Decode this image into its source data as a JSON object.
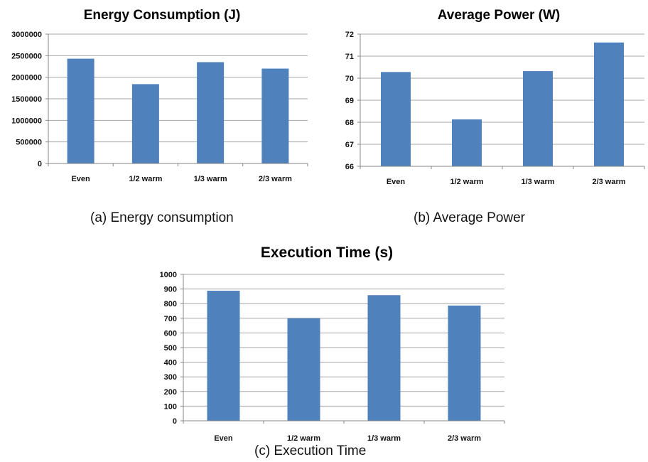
{
  "colors": {
    "bar": "#4f81bd",
    "grid": "#a6a6a6",
    "axis": "#868686"
  },
  "chart_data": [
    {
      "id": "energy",
      "type": "bar",
      "title": "Energy Consumption (J)",
      "categories": [
        "Even",
        "1/2 warm",
        "1/3 warm",
        "2/3 warm"
      ],
      "values": [
        2430000,
        1840000,
        2350000,
        2200000
      ],
      "ylim": [
        0,
        3000000
      ],
      "yticks": [
        0,
        500000,
        1000000,
        1500000,
        2000000,
        2500000,
        3000000
      ],
      "ytick_labels": [
        "0",
        "500000",
        "1000000",
        "1500000",
        "2000000",
        "2500000",
        "3000000"
      ],
      "grid": true,
      "xlabel": "",
      "ylabel": ""
    },
    {
      "id": "power",
      "type": "bar",
      "title": "Average Power (W)",
      "categories": [
        "Even",
        "1/2 warm",
        "1/3 warm",
        "2/3 warm"
      ],
      "values": [
        70.28,
        68.13,
        70.32,
        71.62
      ],
      "ylim": [
        66,
        72
      ],
      "yticks": [
        66,
        67,
        68,
        69,
        70,
        71,
        72
      ],
      "ytick_labels": [
        "66",
        "67",
        "68",
        "69",
        "70",
        "71",
        "72"
      ],
      "grid": true,
      "xlabel": "",
      "ylabel": ""
    },
    {
      "id": "time",
      "type": "bar",
      "title": "Execution Time (s)",
      "categories": [
        "Even",
        "1/2 warm",
        "1/3 warm",
        "2/3 warm"
      ],
      "values": [
        888,
        700,
        858,
        787
      ],
      "ylim": [
        0,
        1000
      ],
      "yticks": [
        0,
        100,
        200,
        300,
        400,
        500,
        600,
        700,
        800,
        900,
        1000
      ],
      "ytick_labels": [
        "0",
        "100",
        "200",
        "300",
        "400",
        "500",
        "600",
        "700",
        "800",
        "900",
        "1000"
      ],
      "grid": true,
      "xlabel": "",
      "ylabel": ""
    }
  ],
  "captions": {
    "a": "(a) Energy consumption",
    "b": "(b) Average Power",
    "c": "(c) Execution Time"
  }
}
